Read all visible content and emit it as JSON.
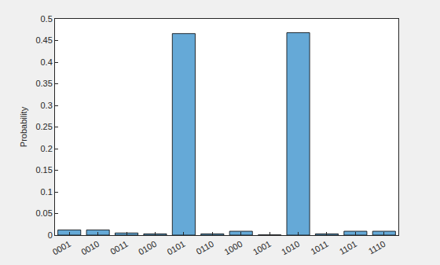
{
  "chart_data": {
    "type": "bar",
    "categories": [
      "0001",
      "0010",
      "0011",
      "0100",
      "0101",
      "0110",
      "1000",
      "1001",
      "1010",
      "1011",
      "1101",
      "1110"
    ],
    "values": [
      0.012,
      0.012,
      0.005,
      0.003,
      0.466,
      0.003,
      0.009,
      0.0005,
      0.468,
      0.003,
      0.009,
      0.009
    ],
    "color": "#65a9d7",
    "y_label": "Probability",
    "ylim": [
      0,
      0.5
    ],
    "yticks": [
      0,
      0.05,
      0.1,
      0.15,
      0.2,
      0.25,
      0.3,
      0.35,
      0.4,
      0.45,
      0.5
    ],
    "grid": false
  }
}
